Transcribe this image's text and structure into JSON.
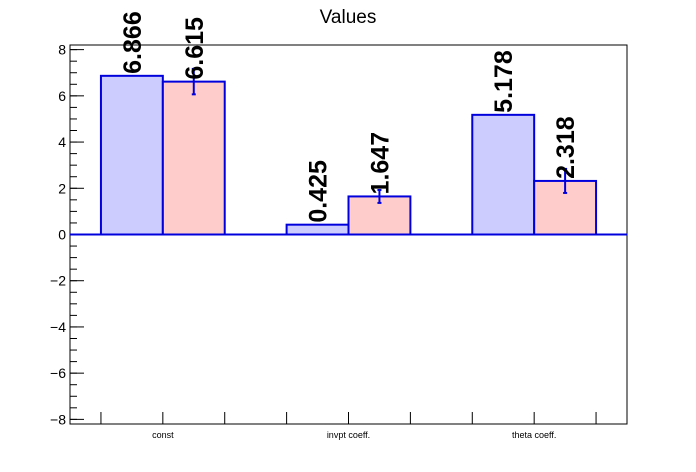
{
  "chart_data": {
    "type": "bar",
    "title": "Values",
    "categories": [
      "const",
      "invpt coeff.",
      "theta coeff."
    ],
    "series": [
      {
        "values": [
          6.866,
          0.425,
          5.178
        ],
        "value_labels": [
          "6.866",
          "0.425",
          "5.178"
        ],
        "fill_color": "#ccccff",
        "line_color": "#0000dd"
      },
      {
        "values": [
          6.615,
          1.647,
          2.318
        ],
        "value_labels": [
          "6.615",
          "1.647",
          "2.318"
        ],
        "errors": [
          0.55,
          0.28,
          0.52
        ],
        "fill_color": "#ffcccc",
        "line_color": "#0000dd"
      }
    ],
    "ylim": [
      -8.2,
      8.2
    ],
    "yticks": [
      -8,
      -6,
      -4,
      -2,
      0,
      2,
      4,
      6,
      8
    ],
    "ytick_labels": [
      "−8",
      "−6",
      "−4",
      "−2",
      "0",
      "2",
      "4",
      "6",
      "8"
    ],
    "xlabel": "",
    "ylabel": "",
    "grid": false,
    "legend": "none",
    "zero_line_color": "#0000dd",
    "error_bar_color": "#0000dd"
  }
}
